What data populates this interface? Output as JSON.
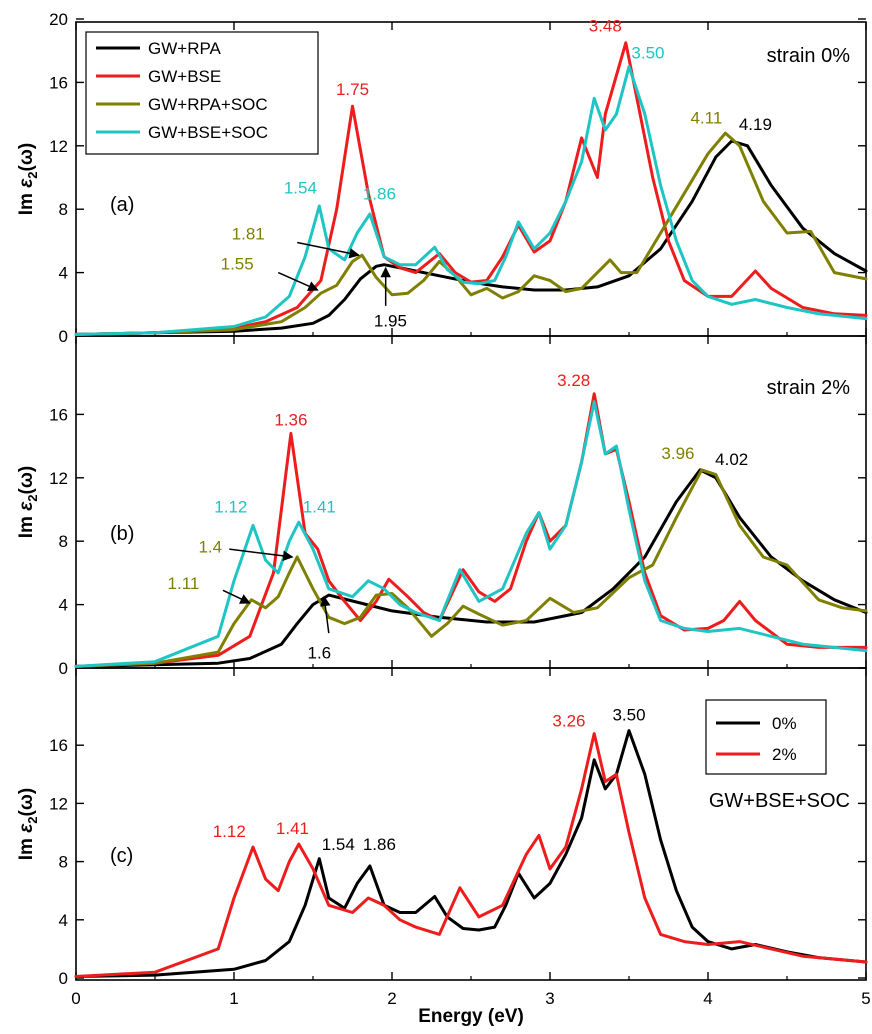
{
  "figure": {
    "xlabel": "Energy (eV)",
    "ylabel_prefix": "Im ",
    "ylabel_sym": "ε",
    "ylabel_sub": "2",
    "ylabel_suffix": "(ω)"
  },
  "colors": {
    "rpa": "#000000",
    "bse": "#ee1c1c",
    "rpa_soc": "#808000",
    "bse_soc": "#1fc4c4"
  },
  "chart_data": [
    {
      "type": "line",
      "panel_label": "(a)",
      "annotation": "strain 0%",
      "xlim": [
        0,
        5
      ],
      "ylim": [
        0,
        20
      ],
      "xticks": [
        0,
        1,
        2,
        3,
        4,
        5
      ],
      "yticks": [
        0,
        4,
        8,
        12,
        16,
        20
      ],
      "legend": "top-left",
      "series": [
        {
          "name": "GW+RPA",
          "color": "#000000",
          "x": [
            0,
            0.5,
            1.0,
            1.3,
            1.5,
            1.6,
            1.7,
            1.8,
            1.9,
            1.95,
            2.1,
            2.3,
            2.5,
            2.7,
            2.9,
            3.1,
            3.3,
            3.5,
            3.7,
            3.9,
            4.05,
            4.15,
            4.25,
            4.4,
            4.6,
            4.8,
            5.0
          ],
          "y": [
            0.1,
            0.2,
            0.3,
            0.5,
            0.8,
            1.3,
            2.3,
            3.6,
            4.4,
            4.5,
            4.2,
            3.8,
            3.4,
            3.1,
            2.9,
            2.9,
            3.1,
            3.8,
            5.5,
            8.5,
            11.3,
            12.3,
            12.0,
            9.5,
            6.8,
            5.2,
            4.1
          ]
        },
        {
          "name": "GW+BSE",
          "color": "#ee1c1c",
          "x": [
            0,
            0.5,
            1.0,
            1.2,
            1.4,
            1.55,
            1.65,
            1.75,
            1.85,
            1.95,
            2.05,
            2.15,
            2.3,
            2.4,
            2.5,
            2.6,
            2.7,
            2.8,
            2.9,
            3.0,
            3.1,
            3.2,
            3.3,
            3.35,
            3.48,
            3.55,
            3.65,
            3.75,
            3.85,
            4.0,
            4.15,
            4.3,
            4.4,
            4.6,
            4.8,
            5.0
          ],
          "y": [
            0.1,
            0.2,
            0.5,
            0.9,
            1.8,
            3.5,
            8.0,
            14.5,
            9.0,
            5.0,
            4.3,
            4.0,
            5.2,
            4.0,
            3.4,
            3.5,
            5.0,
            7.0,
            5.3,
            6.0,
            8.5,
            12.5,
            10.0,
            14.0,
            18.5,
            15.0,
            10.0,
            6.0,
            3.5,
            2.5,
            2.5,
            4.1,
            3.0,
            1.8,
            1.4,
            1.3
          ]
        },
        {
          "name": "GW+RPA+SOC",
          "color": "#808000",
          "x": [
            0,
            0.5,
            1.0,
            1.3,
            1.45,
            1.55,
            1.65,
            1.75,
            1.81,
            1.9,
            2.0,
            2.1,
            2.2,
            2.3,
            2.4,
            2.5,
            2.6,
            2.7,
            2.8,
            2.9,
            3.0,
            3.1,
            3.2,
            3.3,
            3.38,
            3.45,
            3.55,
            3.7,
            3.85,
            4.0,
            4.11,
            4.2,
            4.35,
            4.5,
            4.65,
            4.8,
            5.0
          ],
          "y": [
            0.1,
            0.2,
            0.4,
            0.9,
            1.8,
            2.7,
            3.2,
            4.7,
            5.1,
            3.7,
            2.6,
            2.7,
            3.5,
            4.7,
            3.8,
            2.6,
            3.0,
            2.4,
            2.8,
            3.8,
            3.5,
            2.8,
            3.0,
            4.0,
            4.8,
            4.0,
            4.0,
            6.5,
            9.0,
            11.5,
            12.8,
            12.0,
            8.5,
            6.5,
            6.6,
            4.0,
            3.6
          ]
        },
        {
          "name": "GW+BSE+SOC",
          "color": "#1fc4c4",
          "x": [
            0,
            0.5,
            1.0,
            1.2,
            1.35,
            1.45,
            1.54,
            1.6,
            1.7,
            1.78,
            1.86,
            1.95,
            2.05,
            2.15,
            2.27,
            2.35,
            2.45,
            2.55,
            2.65,
            2.72,
            2.8,
            2.9,
            3.0,
            3.1,
            3.2,
            3.28,
            3.35,
            3.42,
            3.5,
            3.6,
            3.7,
            3.8,
            3.9,
            4.0,
            4.15,
            4.3,
            4.5,
            4.7,
            5.0
          ],
          "y": [
            0.1,
            0.2,
            0.6,
            1.2,
            2.5,
            5.0,
            8.2,
            5.5,
            4.8,
            6.5,
            7.7,
            5.0,
            4.5,
            4.5,
            5.6,
            4.2,
            3.4,
            3.3,
            3.5,
            5.0,
            7.2,
            5.5,
            6.5,
            8.5,
            11.0,
            15.0,
            13.0,
            14.0,
            17.0,
            14.0,
            9.5,
            6.0,
            3.5,
            2.5,
            2.0,
            2.3,
            1.8,
            1.4,
            1.1
          ]
        }
      ],
      "annotations": [
        {
          "text": "1.75",
          "x": 1.75,
          "y": 15.2,
          "color": "#ee1c1c"
        },
        {
          "text": "3.48",
          "x": 3.35,
          "y": 19.2,
          "color": "#ee1c1c"
        },
        {
          "text": "3.50",
          "x": 3.62,
          "y": 17.5,
          "color": "#1fc4c4"
        },
        {
          "text": "1.54",
          "x": 1.42,
          "y": 9.0,
          "color": "#1fc4c4"
        },
        {
          "text": "1.86",
          "x": 1.92,
          "y": 8.6,
          "color": "#1fc4c4"
        },
        {
          "text": "4.11",
          "x": 3.99,
          "y": 13.4,
          "color": "#808000"
        },
        {
          "text": "4.19",
          "x": 4.3,
          "y": 13.0,
          "color": "#000000"
        },
        {
          "text": "1.81",
          "x": 1.09,
          "y": 6.1,
          "color": "#808000"
        },
        {
          "text": "1.55",
          "x": 1.02,
          "y": 4.2,
          "color": "#808000"
        },
        {
          "text": "1.95",
          "x": 1.99,
          "y": 0.6,
          "color": "#000000"
        }
      ],
      "arrows": [
        {
          "from": [
            1.4,
            5.9
          ],
          "to": [
            1.79,
            5.1
          ]
        },
        {
          "from": [
            1.28,
            4.0
          ],
          "to": [
            1.53,
            2.9
          ]
        },
        {
          "from": [
            1.96,
            1.9
          ],
          "to": [
            1.96,
            4.3
          ]
        }
      ]
    },
    {
      "type": "line",
      "panel_label": "(b)",
      "annotation": "strain 2%",
      "xlim": [
        0,
        5
      ],
      "ylim": [
        0,
        20
      ],
      "xticks": [
        0,
        1,
        2,
        3,
        4,
        5
      ],
      "yticks": [
        0,
        4,
        8,
        12,
        16
      ],
      "series": [
        {
          "name": "GW+RPA",
          "color": "#000000",
          "x": [
            0,
            0.5,
            0.9,
            1.1,
            1.3,
            1.4,
            1.5,
            1.6,
            1.8,
            2.0,
            2.3,
            2.6,
            2.9,
            3.2,
            3.4,
            3.6,
            3.8,
            3.95,
            4.05,
            4.2,
            4.4,
            4.6,
            4.8,
            5.0
          ],
          "y": [
            0.1,
            0.2,
            0.3,
            0.6,
            1.5,
            2.8,
            4.0,
            4.6,
            4.1,
            3.6,
            3.2,
            2.9,
            2.9,
            3.5,
            5.0,
            7.0,
            10.5,
            12.5,
            12.0,
            9.5,
            7.0,
            5.5,
            4.3,
            3.5
          ]
        },
        {
          "name": "GW+BSE",
          "color": "#ee1c1c",
          "x": [
            0,
            0.5,
            0.9,
            1.1,
            1.25,
            1.36,
            1.45,
            1.53,
            1.6,
            1.7,
            1.8,
            1.9,
            1.98,
            2.1,
            2.2,
            2.3,
            2.45,
            2.55,
            2.65,
            2.75,
            2.85,
            2.93,
            3.0,
            3.1,
            3.2,
            3.28,
            3.35,
            3.42,
            3.5,
            3.6,
            3.7,
            3.85,
            4.0,
            4.1,
            4.2,
            4.3,
            4.5,
            4.7,
            5.0
          ],
          "y": [
            0.1,
            0.3,
            0.8,
            2.0,
            6.0,
            14.8,
            8.5,
            7.5,
            5.5,
            4.2,
            3.0,
            4.2,
            5.6,
            4.5,
            3.5,
            3.0,
            6.2,
            4.8,
            4.2,
            5.0,
            8.0,
            9.8,
            8.0,
            9.0,
            13.0,
            17.3,
            13.5,
            13.8,
            10.5,
            6.0,
            3.3,
            2.4,
            2.5,
            3.0,
            4.2,
            3.0,
            1.5,
            1.3,
            1.3
          ]
        },
        {
          "name": "GW+RPA+SOC",
          "color": "#808000",
          "x": [
            0,
            0.5,
            0.9,
            1.0,
            1.11,
            1.2,
            1.28,
            1.35,
            1.4,
            1.5,
            1.6,
            1.7,
            1.8,
            1.9,
            2.0,
            2.1,
            2.25,
            2.35,
            2.45,
            2.55,
            2.7,
            2.85,
            3.0,
            3.15,
            3.3,
            3.5,
            3.65,
            3.8,
            3.96,
            4.05,
            4.2,
            4.35,
            4.5,
            4.7,
            4.85,
            5.0
          ],
          "y": [
            0.1,
            0.3,
            1.0,
            2.8,
            4.3,
            3.8,
            4.5,
            6.0,
            7.0,
            5.0,
            3.2,
            2.8,
            3.2,
            4.6,
            4.7,
            3.8,
            2.0,
            2.8,
            3.9,
            3.4,
            2.7,
            3.0,
            4.4,
            3.5,
            3.8,
            5.7,
            6.5,
            9.5,
            12.5,
            12.2,
            9.0,
            7.0,
            6.5,
            4.3,
            3.8,
            3.6
          ]
        },
        {
          "name": "GW+BSE+SOC",
          "color": "#1fc4c4",
          "x": [
            0,
            0.5,
            0.9,
            1.0,
            1.12,
            1.2,
            1.28,
            1.35,
            1.41,
            1.5,
            1.6,
            1.75,
            1.85,
            1.95,
            2.05,
            2.15,
            2.3,
            2.43,
            2.55,
            2.7,
            2.85,
            2.93,
            3.0,
            3.1,
            3.2,
            3.28,
            3.35,
            3.42,
            3.5,
            3.6,
            3.7,
            3.85,
            4.0,
            4.2,
            4.4,
            4.6,
            5.0
          ],
          "y": [
            0.1,
            0.4,
            2.0,
            5.5,
            9.0,
            6.8,
            6.0,
            8.0,
            9.2,
            7.5,
            5.0,
            4.5,
            5.5,
            5.0,
            4.0,
            3.5,
            3.0,
            6.2,
            4.2,
            5.0,
            8.5,
            9.8,
            7.5,
            9.0,
            13.0,
            16.8,
            13.5,
            14.0,
            10.0,
            5.5,
            3.0,
            2.5,
            2.3,
            2.5,
            2.0,
            1.5,
            1.1
          ]
        }
      ],
      "annotations": [
        {
          "text": "1.36",
          "x": 1.36,
          "y": 15.3,
          "color": "#ee1c1c"
        },
        {
          "text": "3.28",
          "x": 3.15,
          "y": 17.8,
          "color": "#ee1c1c"
        },
        {
          "text": "1.12",
          "x": 0.98,
          "y": 9.8,
          "color": "#1fc4c4"
        },
        {
          "text": "1.41",
          "x": 1.54,
          "y": 9.8,
          "color": "#1fc4c4"
        },
        {
          "text": "1.4",
          "x": 0.85,
          "y": 7.3,
          "color": "#808000"
        },
        {
          "text": "1.11",
          "x": 0.68,
          "y": 5.0,
          "color": "#808000"
        },
        {
          "text": "3.96",
          "x": 3.81,
          "y": 13.2,
          "color": "#808000"
        },
        {
          "text": "4.02",
          "x": 4.15,
          "y": 12.8,
          "color": "#000000"
        },
        {
          "text": "1.6",
          "x": 1.54,
          "y": 0.6,
          "color": "#000000"
        }
      ],
      "arrows": [
        {
          "from": [
            0.97,
            7.5
          ],
          "to": [
            1.37,
            7.0
          ]
        },
        {
          "from": [
            0.93,
            4.9
          ],
          "to": [
            1.1,
            4.1
          ]
        },
        {
          "from": [
            1.6,
            2.2
          ],
          "to": [
            1.57,
            4.5
          ]
        }
      ]
    },
    {
      "type": "line",
      "panel_label": "(c)",
      "annotation": "GW+BSE+SOC",
      "xlim": [
        0,
        5
      ],
      "ylim": [
        0,
        20
      ],
      "xticks": [
        0,
        1,
        2,
        3,
        4,
        5
      ],
      "yticks": [
        0,
        4,
        8,
        12,
        16
      ],
      "legend": "top-right",
      "series": [
        {
          "name": "0%",
          "color": "#000000",
          "x": [
            0,
            0.5,
            1.0,
            1.2,
            1.35,
            1.45,
            1.54,
            1.6,
            1.7,
            1.78,
            1.86,
            1.95,
            2.05,
            2.15,
            2.27,
            2.35,
            2.45,
            2.55,
            2.65,
            2.72,
            2.8,
            2.9,
            3.0,
            3.1,
            3.2,
            3.28,
            3.35,
            3.42,
            3.5,
            3.6,
            3.7,
            3.8,
            3.9,
            4.0,
            4.15,
            4.3,
            4.5,
            4.7,
            5.0
          ],
          "y": [
            0.1,
            0.2,
            0.6,
            1.2,
            2.5,
            5.0,
            8.2,
            5.5,
            4.8,
            6.5,
            7.7,
            5.0,
            4.5,
            4.5,
            5.6,
            4.2,
            3.4,
            3.3,
            3.5,
            5.0,
            7.2,
            5.5,
            6.5,
            8.5,
            11.0,
            15.0,
            13.0,
            14.0,
            17.0,
            14.0,
            9.5,
            6.0,
            3.5,
            2.5,
            2.0,
            2.3,
            1.8,
            1.4,
            1.1
          ]
        },
        {
          "name": "2%",
          "color": "#ee1c1c",
          "x": [
            0,
            0.5,
            0.9,
            1.0,
            1.12,
            1.2,
            1.28,
            1.35,
            1.41,
            1.5,
            1.6,
            1.75,
            1.85,
            1.95,
            2.05,
            2.15,
            2.3,
            2.43,
            2.55,
            2.7,
            2.85,
            2.93,
            3.0,
            3.1,
            3.2,
            3.28,
            3.35,
            3.42,
            3.5,
            3.6,
            3.7,
            3.85,
            4.0,
            4.2,
            4.4,
            4.6,
            5.0
          ],
          "y": [
            0.1,
            0.4,
            2.0,
            5.5,
            9.0,
            6.8,
            6.0,
            8.0,
            9.2,
            7.5,
            5.0,
            4.5,
            5.5,
            5.0,
            4.0,
            3.5,
            3.0,
            6.2,
            4.2,
            5.0,
            8.5,
            9.8,
            7.5,
            9.0,
            13.0,
            16.8,
            13.5,
            14.0,
            10.0,
            5.5,
            3.0,
            2.5,
            2.3,
            2.5,
            2.0,
            1.5,
            1.1
          ]
        }
      ],
      "annotations": [
        {
          "text": "3.26",
          "x": 3.12,
          "y": 17.3,
          "color": "#ee1c1c"
        },
        {
          "text": "3.50",
          "x": 3.5,
          "y": 17.7,
          "color": "#000000"
        },
        {
          "text": "1.12",
          "x": 0.97,
          "y": 9.7,
          "color": "#ee1c1c"
        },
        {
          "text": "1.41",
          "x": 1.37,
          "y": 9.9,
          "color": "#ee1c1c"
        },
        {
          "text": "1.54",
          "x": 1.66,
          "y": 8.8,
          "color": "#000000"
        },
        {
          "text": "1.86",
          "x": 1.92,
          "y": 8.8,
          "color": "#000000"
        }
      ],
      "arrows": []
    }
  ]
}
